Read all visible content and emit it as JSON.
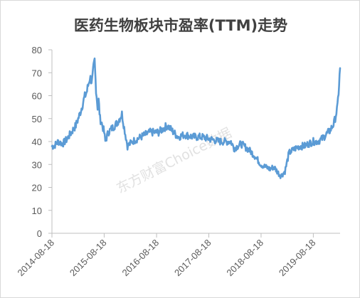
{
  "chart_data": {
    "type": "line",
    "title": "医药生物板块市盈率(TTM)走势",
    "xlabel": "",
    "ylabel": "",
    "ylim": [
      0,
      80
    ],
    "yticks": [
      0,
      10,
      20,
      30,
      40,
      50,
      60,
      70,
      80
    ],
    "x_tick_labels": [
      "2014-08-18",
      "2015-08-18",
      "2016-08-18",
      "2017-08-18",
      "2018-08-18",
      "2019-08-18"
    ],
    "x_range": [
      "2014-08-18",
      "2020-02-21"
    ],
    "grid": false,
    "legend": "none",
    "watermark": "东方财富Choice数据",
    "colors": {
      "line": "#5b9bd5",
      "axis": "#bfbfbf"
    },
    "series": [
      {
        "x": [
          "2014-08-18",
          "2014-09-01",
          "2014-10-01",
          "2014-11-01",
          "2014-12-01",
          "2015-01-01",
          "2015-02-01",
          "2015-03-01",
          "2015-04-01",
          "2015-04-20",
          "2015-05-10",
          "2015-05-25",
          "2015-06-05",
          "2015-06-12",
          "2015-06-22",
          "2015-07-03",
          "2015-07-10",
          "2015-07-20",
          "2015-08-01",
          "2015-08-18",
          "2015-08-26",
          "2015-09-15",
          "2015-10-15",
          "2015-11-15",
          "2015-12-20",
          "2016-01-05",
          "2016-01-28",
          "2016-03-01",
          "2016-05-01",
          "2016-07-01",
          "2016-09-01",
          "2016-11-01",
          "2016-12-15",
          "2017-01-15",
          "2017-03-01",
          "2017-05-01",
          "2017-07-01",
          "2017-09-01",
          "2017-11-01",
          "2018-01-20",
          "2018-02-10",
          "2018-04-01",
          "2018-06-01",
          "2018-07-01",
          "2018-08-18",
          "2018-09-15",
          "2018-10-20",
          "2018-11-15",
          "2018-12-20",
          "2019-01-04",
          "2019-02-01",
          "2019-03-01",
          "2019-04-15",
          "2019-05-15",
          "2019-06-15",
          "2019-07-15",
          "2019-08-18",
          "2019-09-15",
          "2019-10-15",
          "2019-11-15",
          "2019-12-15",
          "2020-01-10",
          "2020-02-03",
          "2020-02-14",
          "2020-02-21"
        ],
        "y": [
          38,
          38,
          40,
          39,
          41,
          44,
          47,
          52,
          59,
          62,
          68,
          66,
          72,
          75,
          63,
          55,
          58,
          50,
          48,
          44,
          40,
          44,
          46,
          48,
          52,
          46,
          38,
          40,
          42,
          44,
          44,
          47,
          44,
          42,
          43,
          42,
          42,
          41,
          40,
          40,
          37,
          39,
          36,
          34,
          30,
          29,
          28,
          29,
          26,
          25,
          27,
          35,
          37,
          38,
          38,
          39,
          40,
          40,
          41,
          43,
          45,
          48,
          55,
          65,
          72
        ]
      }
    ]
  }
}
